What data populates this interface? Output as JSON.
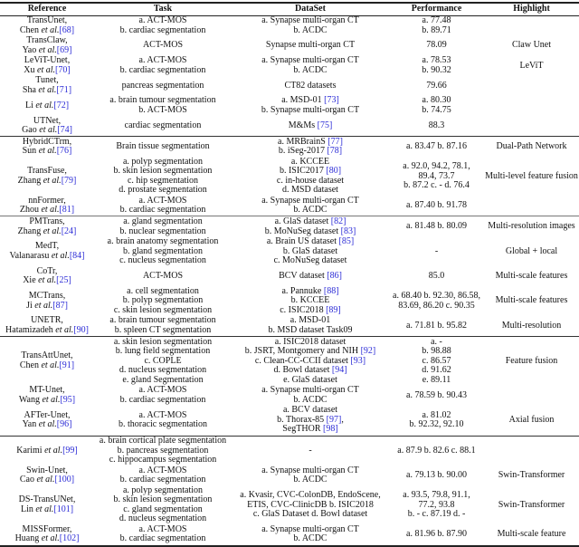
{
  "headers": [
    "Reference",
    "Task",
    "DataSet",
    "Performance",
    "Highlight"
  ],
  "et_al": "et al.",
  "rows": [
    {
      "name": "TransUnet,",
      "author": "Chen",
      "cite": "[68]",
      "task": [
        "a. ACT-MOS",
        "b. cardiac segmentation"
      ],
      "dataset": [
        {
          "t": "a. Synapse multi-organ CT"
        },
        {
          "t": "b. ACDC"
        }
      ],
      "perf": [
        "a. 77.48",
        "b. 89.71"
      ],
      "highlight": ""
    },
    {
      "name": "TransClaw,",
      "author": "Yao",
      "cite": "[69]",
      "task": [
        "ACT-MOS"
      ],
      "dataset": [
        {
          "t": "Synapse multi-organ CT"
        }
      ],
      "perf": [
        "78.09"
      ],
      "highlight": "Claw Unet"
    },
    {
      "name": "LeViT-Unet,",
      "author": "Xu",
      "cite": "[70]",
      "task": [
        "a. ACT-MOS",
        "b. cardiac segmentation"
      ],
      "dataset": [
        {
          "t": "a. Synapse multi-organ CT"
        },
        {
          "t": "b. ACDC"
        }
      ],
      "perf": [
        "a. 78.53",
        "b. 90.32"
      ],
      "highlight": "LeViT"
    },
    {
      "name": "Tunet,",
      "author": "Sha",
      "cite": "[71]",
      "task": [
        "pancreas segmentation"
      ],
      "dataset": [
        {
          "t": "CT82 datasets"
        }
      ],
      "perf": [
        "79.66"
      ],
      "highlight": ""
    },
    {
      "name": "",
      "author": "Li",
      "cite": "[72]",
      "task": [
        "a. brain tumour segmentation",
        "b. ACT-MOS"
      ],
      "dataset": [
        {
          "t": "a. MSD-01 ",
          "c": "[73]"
        },
        {
          "t": "b. Synapse multi-organ CT"
        }
      ],
      "perf": [
        "a. 80.30",
        "b. 74.75"
      ],
      "highlight": ""
    },
    {
      "name": "UTNet,",
      "author": "Gao",
      "cite": "[74]",
      "task": [
        "cardiac segmentation"
      ],
      "dataset": [
        {
          "t": "M&Ms ",
          "c": "[75]"
        }
      ],
      "perf": [
        "88.3"
      ],
      "highlight": ""
    },
    {
      "sep": "sep",
      "name": "HybridCTrm,",
      "author": "Sun",
      "cite": "[76]",
      "task": [
        "Brain tissue segmentation"
      ],
      "dataset": [
        {
          "t": "a. MRBrainS ",
          "c": "[77]"
        },
        {
          "t": "b. iSeg-2017 ",
          "c": "[78]"
        }
      ],
      "perf": [
        "a. 83.47 b. 87.16"
      ],
      "highlight": "Dual-Path Network"
    },
    {
      "name": "TransFuse,",
      "author": "Zhang",
      "cite": "[79]",
      "task": [
        "a. polyp segmentation",
        "b. skin lesion segmentation",
        "c. hip segmentation",
        "d. prostate segmentation"
      ],
      "dataset": [
        {
          "t": "a. KCCEE"
        },
        {
          "t": "b. ISIC2017 ",
          "c": "[80]"
        },
        {
          "t": "c. in-house dataset"
        },
        {
          "t": "d. MSD dataset"
        }
      ],
      "perf": [
        "a. 92.0, 94.2, 78.1,",
        "89.4, 73.7",
        "b. 87.2 c. - d. 76.4"
      ],
      "highlight": "Multi-level feature fusion"
    },
    {
      "name": "nnFormer,",
      "author": "Zhou",
      "cite": "[81]",
      "task": [
        "a. ACT-MOS",
        "b. cardiac segmentation"
      ],
      "dataset": [
        {
          "t": "a. Synapse multi-organ CT"
        },
        {
          "t": "b. ACDC"
        }
      ],
      "perf": [
        "a. 87.40 b. 91.78"
      ],
      "highlight": ""
    },
    {
      "sep": "sepl",
      "name": "PMTrans,",
      "author": "Zhang",
      "cite": "[24]",
      "task": [
        "a. gland segmentation",
        "b. nuclear segmentation"
      ],
      "dataset": [
        {
          "t": "a. GlaS dataset ",
          "c": "[82]"
        },
        {
          "t": "b. MoNuSeg dataset ",
          "c": "[83]"
        }
      ],
      "perf": [
        "a. 81.48 b. 80.09"
      ],
      "highlight": "Multi-resolution images"
    },
    {
      "name": "MedT,",
      "author": "Valanarasu",
      "cite": "[84]",
      "task": [
        "a. brain anatomy segmentation",
        "b. gland segmentation",
        "c. nucleus segmentation"
      ],
      "dataset": [
        {
          "t": "a. Brain US dataset ",
          "c": "[85]"
        },
        {
          "t": "b. GlaS dataset"
        },
        {
          "t": "c. MoNuSeg dataset"
        }
      ],
      "perf": [
        "-"
      ],
      "highlight": "Global + local"
    },
    {
      "name": "CoTr,",
      "author": "Xie",
      "cite": "[25]",
      "task": [
        "ACT-MOS"
      ],
      "dataset": [
        {
          "t": "BCV dataset ",
          "c": "[86]"
        }
      ],
      "perf": [
        "85.0"
      ],
      "highlight": "Multi-scale features"
    },
    {
      "name": "MCTrans,",
      "author": "Ji",
      "cite": "[87]",
      "task": [
        "a. cell segmentation",
        "b. polyp segmentation",
        "c. skin lesion segmentation"
      ],
      "dataset": [
        {
          "t": "a. Pannuke ",
          "c": "[88]"
        },
        {
          "t": "b. KCCEE"
        },
        {
          "t": "c. ISIC2018 ",
          "c": "[89]"
        }
      ],
      "perf": [
        "a. 68.40 b. 92.30, 86.58,",
        "83.69, 86.20 c. 90.35"
      ],
      "highlight": "Multi-scale features"
    },
    {
      "name": "UNETR,",
      "author": "Hatamizadeh",
      "cite": "[90]",
      "task": [
        "a. brain tumour segmentation",
        "b. spleen CT segmentation"
      ],
      "dataset": [
        {
          "t": "a. MSD-01"
        },
        {
          "t": "b. MSD dataset Task09"
        }
      ],
      "perf": [
        "a. 71.81 b. 95.82"
      ],
      "highlight": "Multi-resolution"
    },
    {
      "sep": "sep",
      "name": "TransAttUnet,",
      "author": "Chen",
      "cite": "[91]",
      "task": [
        "a. skin lesion segmentation",
        "b. lung field segmentation",
        "c. COPLE",
        "d. nucleus segmentation",
        "e. gland Segmentation"
      ],
      "dataset": [
        {
          "t": "a. ISIC2018 dataset"
        },
        {
          "t": "b. JSRT, Montgomery and NIH ",
          "c": "[92]"
        },
        {
          "t": "c. Clean-CC-CCII dataset ",
          "c": "[93]"
        },
        {
          "t": "d. Bowl dataset ",
          "c": "[94]"
        },
        {
          "t": "e. GlaS dataset"
        }
      ],
      "perf": [
        "a. -",
        "b. 98.88",
        "c. 86.57",
        "d. 91.62",
        "e. 89.11"
      ],
      "highlight": "Feature fusion"
    },
    {
      "name": "MT-Unet,",
      "author": "Wang",
      "cite": "[95]",
      "task": [
        "a. ACT-MOS",
        "b. cardiac segmentation"
      ],
      "dataset": [
        {
          "t": "a. Synapse multi-organ CT"
        },
        {
          "t": "b. ACDC"
        }
      ],
      "perf": [
        "a. 78.59 b. 90.43"
      ],
      "highlight": ""
    },
    {
      "name": "AFTer-Unet,",
      "author": "Yan",
      "cite": "[96]",
      "task": [
        "a. ACT-MOS",
        "b. thoracic segmentation"
      ],
      "dataset": [
        {
          "t": "a. BCV dataset"
        },
        {
          "t": "b. Thorax-85 ",
          "c": "[97]",
          "s": ","
        },
        {
          "t": "SegTHOR ",
          "c": "[98]"
        }
      ],
      "perf": [
        "a. 81.02",
        "b. 92.32, 92.10"
      ],
      "highlight": "Axial fusion"
    },
    {
      "sep": "sep",
      "name": "",
      "author": "Karimi",
      "cite": "[99]",
      "task": [
        "a. brain cortical plate segmentation",
        "b. pancreas segmentation",
        "c. hippocampus segmentation"
      ],
      "dataset": [
        {
          "t": "-"
        }
      ],
      "perf": [
        "a. 87.9 b. 82.6 c. 88.1"
      ],
      "highlight": ""
    },
    {
      "name": "Swin-Unet,",
      "author": "Cao",
      "cite": "[100]",
      "task": [
        "a. ACT-MOS",
        "b. cardiac segmentation"
      ],
      "dataset": [
        {
          "t": "a. Synapse multi-organ CT"
        },
        {
          "t": "b. ACDC"
        }
      ],
      "perf": [
        "a. 79.13 b. 90.00"
      ],
      "highlight": "Swin-Transformer"
    },
    {
      "name": "DS-TransUNet,",
      "author": "Lin",
      "cite": "[101]",
      "task": [
        "a. polyp segmentation",
        "b. skin lesion segmentation",
        "c. gland segmentation",
        "d. nucleus segmentation"
      ],
      "dataset": [
        {
          "t": "a. Kvasir, CVC-ColonDB, EndoScene,"
        },
        {
          "t": "ETIS, CVC-ClinicDB b. ISIC2018"
        },
        {
          "t": "c. GlaS Dataset d. Bowl dataset"
        }
      ],
      "perf": [
        "a. 93.5, 79.8, 91.1,",
        "77.2, 93.8",
        "b. - c. 87.19 d. -"
      ],
      "highlight": "Swin-Transformer"
    },
    {
      "name": "MISSFormer,",
      "author": "Huang",
      "cite": "[102]",
      "task": [
        "a. ACT-MOS",
        "b. cardiac segmentation"
      ],
      "dataset": [
        {
          "t": "a. Synapse multi-organ CT"
        },
        {
          "t": "b. ACDC"
        }
      ],
      "perf": [
        "a. 81.96 b. 87.90"
      ],
      "highlight": "Multi-scale feature"
    }
  ]
}
